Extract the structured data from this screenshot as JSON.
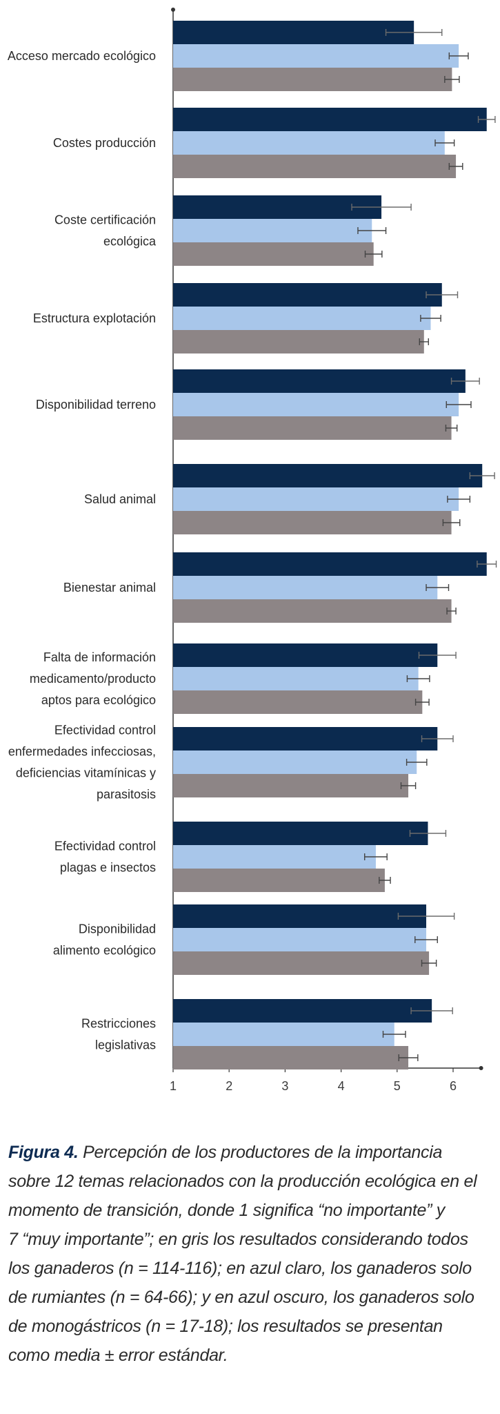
{
  "chart_data": {
    "type": "bar",
    "orientation": "horizontal",
    "categories": [
      [
        "Acceso mercado ecológico"
      ],
      [
        "Costes producción"
      ],
      [
        "Coste certificación",
        "ecológica"
      ],
      [
        "Estructura explotación"
      ],
      [
        "Disponibilidad terreno"
      ],
      [
        "Salud animal"
      ],
      [
        "Bienestar animal"
      ],
      [
        "Falta de información",
        "medicamento/producto",
        "aptos para ecológico"
      ],
      [
        "Efectividad control",
        "enfermedades infecciosas,",
        "deficiencias vitamínicas y",
        "parasitosis"
      ],
      [
        "Efectividad control",
        "plagas e insectos"
      ],
      [
        "Disponibilidad",
        "alimento ecológico"
      ],
      [
        "Restricciones",
        "legislativas"
      ]
    ],
    "series": [
      {
        "color": "#0b2a4f",
        "values": [
          5.3,
          6.6,
          4.72,
          5.8,
          6.22,
          6.52,
          6.6,
          5.72,
          5.72,
          5.55,
          5.52,
          5.62
        ],
        "errors": [
          0.5,
          0.15,
          0.53,
          0.28,
          0.25,
          0.22,
          0.17,
          0.33,
          0.28,
          0.32,
          0.5,
          0.37
        ]
      },
      {
        "color": "#a8c6ea",
        "values": [
          6.1,
          5.85,
          4.55,
          5.6,
          6.1,
          6.1,
          5.72,
          5.38,
          5.35,
          4.62,
          5.52,
          4.95
        ],
        "errors": [
          0.17,
          0.17,
          0.25,
          0.18,
          0.22,
          0.2,
          0.2,
          0.2,
          0.18,
          0.2,
          0.2,
          0.2
        ]
      },
      {
        "color": "#8d8586",
        "values": [
          5.98,
          6.05,
          4.58,
          5.48,
          5.97,
          5.97,
          5.97,
          5.45,
          5.2,
          4.78,
          5.57,
          5.2
        ],
        "errors": [
          0.13,
          0.12,
          0.15,
          0.08,
          0.1,
          0.15,
          0.08,
          0.12,
          0.13,
          0.1,
          0.13,
          0.17
        ]
      }
    ],
    "x_ticks": [
      "1",
      "2",
      "3",
      "4",
      "5",
      "6"
    ],
    "xlim": [
      1,
      6.5
    ],
    "grid": false,
    "error_bars": true
  },
  "caption": {
    "lead": "Figura 4.",
    "lines": [
      "Percepción de los productores de la importancia",
      "sobre 12 temas relacionados con la producción ecológica en el",
      "momento de transición, donde 1 significa “no importante” y",
      "7 “muy importante”; en gris los resultados considerando todos",
      "los ganaderos (n = 114-116); en azul claro, los ganaderos solo",
      "de rumiantes (n = 64-66); y en azul oscuro, los ganaderos solo",
      "de monogástricos (n = 17-18); los resultados se presentan",
      "como media ± error estándar."
    ]
  }
}
